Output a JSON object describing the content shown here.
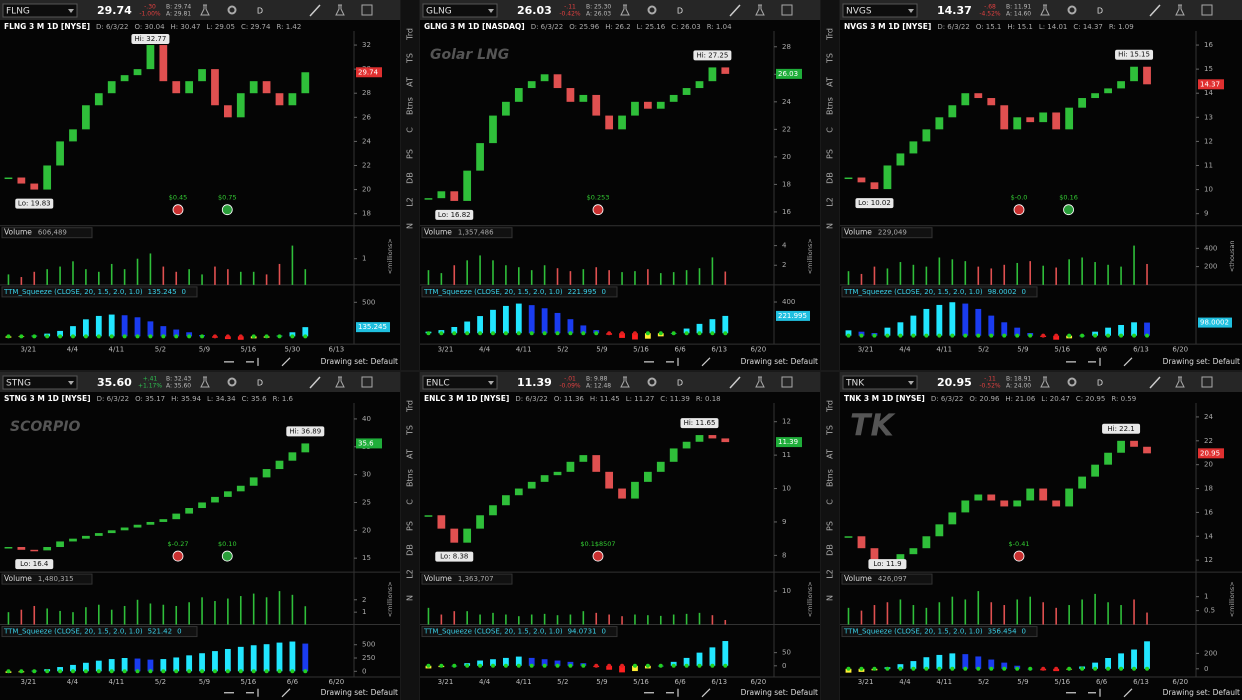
{
  "sidebar_tabs": [
    "Trd",
    "TS",
    "AT",
    "Btns",
    "C",
    "PS",
    "DB",
    "L2",
    "N"
  ],
  "panels": [
    {
      "symbol": "FLNG",
      "last": "29.74",
      "change": "-.30",
      "change_pct": "-1.00%",
      "bid": "B: 29.74",
      "ask": "A: 29.81",
      "timeframe": "D",
      "title": "FLNG 3 M 1D [NYSE]",
      "date": "D: 6/3/22",
      "open": "O: 30.04",
      "high": "H: 30.47",
      "low": "L: 29.05",
      "close": "C: 29.74",
      "range": "R: 1.42",
      "hi_label": "Hi: 32.77",
      "lo_label": "Lo: 19.83",
      "price_ticks": [
        18,
        20,
        22,
        24,
        26,
        28,
        30,
        32
      ],
      "price_tag": "29.74",
      "price_tag_color": "#e03030",
      "events": [
        "$0.45",
        "$0.75"
      ],
      "volume_label": "Volume",
      "volume_value": "606,489",
      "volume_ticks": [
        1
      ],
      "volume_unit": "<millions>",
      "study_label": "TTM_Squeeze (CLOSE, 20, 1.5, 2.0, 1.0)",
      "study_value": "135.245",
      "study_zero": "0",
      "study_ticks": [
        500
      ],
      "study_tag": "135.245",
      "dates": [
        "3/21",
        "4/4",
        "4/11",
        "5/2",
        "5/9",
        "5/16",
        "5/30",
        "6/13"
      ],
      "drawing_set": "Drawing set: Default",
      "closes": [
        21,
        20.5,
        20,
        22,
        24,
        25,
        27,
        28,
        29,
        29.5,
        30,
        32,
        29,
        28,
        29,
        30,
        27,
        26,
        28,
        29,
        28,
        27,
        28,
        29.74
      ],
      "volumes": [
        0.4,
        0.3,
        0.5,
        0.6,
        0.7,
        0.9,
        0.6,
        0.5,
        0.8,
        0.6,
        1.0,
        1.2,
        0.7,
        0.5,
        0.6,
        0.4,
        0.7,
        0.6,
        0.5,
        0.5,
        0.4,
        0.8,
        1.5,
        0.6
      ],
      "squeeze": [
        -20,
        -10,
        10,
        40,
        80,
        150,
        250,
        300,
        320,
        310,
        280,
        220,
        150,
        100,
        60,
        20,
        -20,
        -40,
        -50,
        -30,
        -20,
        10,
        60,
        135.245
      ]
    },
    {
      "symbol": "GLNG",
      "last": "26.03",
      "change": "-.11",
      "change_pct": "-0.42%",
      "bid": "B: 25.30",
      "ask": "A: 26.03",
      "timeframe": "D",
      "title": "GLNG 3 M 1D [NASDAQ]",
      "date": "D: 6/3/22",
      "open": "O: 25.96",
      "high": "H: 26.2",
      "low": "L: 25.16",
      "close": "C: 26.03",
      "range": "R: 1.04",
      "watermark": "Golar LNG",
      "hi_label": "Hi: 27.25",
      "lo_label": "Lo: 16.82",
      "price_ticks": [
        16,
        18,
        20,
        22,
        24,
        26,
        28
      ],
      "price_tag": "26.03",
      "price_tag_color": "#1fae3a",
      "events": [
        "$0.253"
      ],
      "volume_label": "Volume",
      "volume_value": "1,357,486",
      "volume_ticks": [
        2,
        4
      ],
      "volume_unit": "<millions>",
      "study_label": "TTM_Squeeze (CLOSE, 20, 1.5, 2.0, 1.0)",
      "study_value": "221.995",
      "study_zero": "0",
      "study_ticks": [
        400
      ],
      "study_tag": "221.995",
      "dates": [
        "3/21",
        "4/4",
        "4/11",
        "5/2",
        "5/9",
        "5/16",
        "6/6",
        "6/13",
        "6/20"
      ],
      "drawing_set": "Drawing set: Default",
      "closes": [
        17,
        17.5,
        16.8,
        19,
        21,
        23,
        24,
        25,
        25.5,
        26,
        25,
        24,
        24.5,
        23,
        22,
        23,
        24,
        23.5,
        24,
        24.5,
        25,
        25.5,
        26.5,
        26.03
      ],
      "volumes": [
        1.5,
        1.2,
        2,
        2.5,
        3,
        2.5,
        2,
        1.8,
        1.5,
        2,
        1.7,
        1.4,
        1.6,
        1.8,
        1.5,
        1.3,
        1.4,
        1.6,
        1.2,
        1.3,
        1.5,
        1.7,
        2.8,
        1.36
      ],
      "squeeze": [
        20,
        40,
        80,
        150,
        220,
        300,
        350,
        380,
        360,
        320,
        260,
        180,
        100,
        40,
        -20,
        -60,
        -80,
        -70,
        -40,
        0,
        60,
        120,
        180,
        221.995
      ]
    },
    {
      "symbol": "NVGS",
      "last": "14.37",
      "change": "-.68",
      "change_pct": "-4.52%",
      "bid": "B: 11.91",
      "ask": "A: 14.60",
      "timeframe": "D",
      "title": "NVGS 3 M 1D [NYSE]",
      "date": "D: 6/3/22",
      "open": "O: 15.1",
      "high": "H: 15.1",
      "low": "L: 14.01",
      "close": "C: 14.37",
      "range": "R: 1.09",
      "hi_label": "Hi: 15.15",
      "lo_label": "Lo: 10.02",
      "price_ticks": [
        9,
        10,
        11,
        12,
        13,
        14,
        15,
        16
      ],
      "price_tag": "14.37",
      "price_tag_color": "#e03030",
      "events": [
        "$-0.0",
        "$0.16"
      ],
      "volume_label": "Volume",
      "volume_value": "229,049",
      "volume_ticks": [
        200,
        400
      ],
      "volume_unit": "<thousan",
      "study_label": "TTM_Squeeze (CLOSE, 20, 1.5, 2.0, 1.0)",
      "study_value": "98.0002",
      "study_zero": "0",
      "study_ticks": [],
      "study_tag": "98.0002",
      "dates": [
        "3/21",
        "4/4",
        "4/11",
        "5/2",
        "5/9",
        "5/16",
        "6/6",
        "6/13",
        "6/20"
      ],
      "drawing_set": "Drawing set: Default",
      "closes": [
        10.5,
        10.3,
        10.02,
        11,
        11.5,
        12,
        12.5,
        13,
        13.5,
        14,
        13.8,
        13.5,
        12.5,
        13,
        12.8,
        13.2,
        12.5,
        13.4,
        13.8,
        14,
        14.2,
        14.5,
        15.1,
        14.37
      ],
      "volumes": [
        150,
        120,
        200,
        180,
        250,
        220,
        200,
        300,
        280,
        260,
        200,
        180,
        220,
        240,
        260,
        210,
        190,
        280,
        300,
        250,
        220,
        200,
        430,
        229
      ],
      "squeeze": [
        40,
        30,
        20,
        60,
        100,
        150,
        200,
        230,
        250,
        240,
        200,
        150,
        100,
        60,
        20,
        -10,
        -30,
        -20,
        0,
        30,
        60,
        80,
        100,
        98.0002
      ]
    },
    {
      "symbol": "STNG",
      "last": "35.60",
      "change": "+.41",
      "change_pct": "+1.17%",
      "bid": "B: 32.43",
      "ask": "A: 35.60",
      "timeframe": "D",
      "title": "STNG 3 M 1D [NYSE]",
      "date": "D: 6/3/22",
      "open": "O: 35.17",
      "high": "H: 35.94",
      "low": "L: 34.34",
      "close": "C: 35.6",
      "range": "R: 1.6",
      "watermark": "SCORPIO",
      "hi_label": "Hi: 36.89",
      "lo_label": "Lo: 16.4",
      "price_ticks": [
        15,
        20,
        25,
        30,
        35,
        40
      ],
      "price_tag": "35.6",
      "price_tag_color": "#1fae3a",
      "events": [
        "$-0.27",
        "$0.10"
      ],
      "volume_label": "Volume",
      "volume_value": "1,480,315",
      "volume_ticks": [
        1,
        2
      ],
      "volume_unit": "<millions>",
      "study_label": "TTM_Squeeze (CLOSE, 20, 1.5, 2.0, 1.0)",
      "study_value": "521.42",
      "study_zero": "0",
      "study_ticks": [
        0,
        250,
        500
      ],
      "dates": [
        "3/21",
        "4/4",
        "4/11",
        "5/2",
        "5/9",
        "5/16",
        "6/6",
        "6/20"
      ],
      "drawing_set": "Drawing set: Default",
      "closes": [
        17,
        16.5,
        16.4,
        17,
        18,
        18.5,
        19,
        19.5,
        20,
        20.5,
        21,
        21.5,
        22,
        23,
        24,
        25,
        26,
        27,
        28,
        29.5,
        31,
        32.5,
        34,
        35.6
      ],
      "volumes": [
        1,
        1.2,
        1.5,
        1.3,
        1.1,
        1,
        1.4,
        1.6,
        1.2,
        1.5,
        2,
        1.7,
        1.6,
        1.5,
        1.8,
        2.2,
        1.9,
        2.1,
        2.3,
        2.5,
        2.2,
        2.7,
        2.4,
        1.48
      ],
      "squeeze": [
        -30,
        -20,
        10,
        40,
        80,
        120,
        160,
        200,
        230,
        250,
        240,
        220,
        230,
        260,
        300,
        340,
        380,
        420,
        460,
        490,
        510,
        540,
        560,
        521.42
      ]
    },
    {
      "symbol": "ENLC",
      "last": "11.39",
      "change": "-.01",
      "change_pct": "-0.09%",
      "bid": "B: 9.88",
      "ask": "A: 12.48",
      "timeframe": "D",
      "title": "ENLC 3 M 1D [NYSE]",
      "date": "D: 6/3/22",
      "open": "O: 11.36",
      "high": "H: 11.45",
      "low": "L: 11.27",
      "close": "C: 11.39",
      "range": "R: 0.18",
      "hi_label": "Hi: 11.65",
      "lo_label": "Lo: 8.38",
      "price_ticks": [
        8,
        9,
        10,
        11,
        12
      ],
      "price_tag": "11.39",
      "price_tag_color": "#1fae3a",
      "events": [
        "$0.1$8507"
      ],
      "volume_label": "Volume",
      "volume_value": "1,363,707",
      "volume_ticks": [
        10
      ],
      "volume_unit": "<millions>",
      "study_label": "TTM_Squeeze (CLOSE, 20, 1.5, 2.0, 1.0)",
      "study_value": "94.0731",
      "study_zero": "0",
      "study_ticks": [
        0,
        50
      ],
      "dates": [
        "3/21",
        "4/4",
        "4/11",
        "5/2",
        "5/9",
        "5/16",
        "6/6",
        "6/13",
        "6/20"
      ],
      "drawing_set": "Drawing set: Default",
      "closes": [
        9.2,
        8.8,
        8.38,
        8.8,
        9.2,
        9.5,
        9.8,
        10,
        10.2,
        10.4,
        10.5,
        10.8,
        11,
        10.5,
        10,
        9.7,
        10.2,
        10.5,
        10.8,
        11.2,
        11.4,
        11.6,
        11.5,
        11.39
      ],
      "volumes": [
        5,
        3,
        4,
        4,
        3,
        3.5,
        3,
        2.5,
        3,
        3.2,
        2.8,
        3,
        4,
        3.5,
        3,
        2.5,
        3,
        2.8,
        2.6,
        3,
        3.2,
        3.5,
        2.8,
        1.36
      ],
      "squeeze": [
        -10,
        -5,
        0,
        10,
        20,
        25,
        30,
        35,
        30,
        25,
        20,
        15,
        10,
        -5,
        -15,
        -25,
        -20,
        -10,
        0,
        15,
        30,
        50,
        70,
        94.0731
      ]
    },
    {
      "symbol": "TNK",
      "last": "20.95",
      "change": "-.11",
      "change_pct": "-0.52%",
      "bid": "B: 18.91",
      "ask": "A: 24.00",
      "timeframe": "D",
      "title": "TNK 3 M 1D [NYSE]",
      "date": "D: 6/3/22",
      "open": "O: 20.96",
      "high": "H: 21.06",
      "low": "L: 20.47",
      "close": "C: 20.95",
      "range": "R: 0.59",
      "watermark": "TK",
      "hi_label": "Hi: 22.1",
      "lo_label": "Lo: 11.9",
      "price_ticks": [
        12,
        14,
        16,
        18,
        20,
        22,
        24
      ],
      "price_tag": "20.95",
      "price_tag_color": "#e03030",
      "events": [
        "$-0.41"
      ],
      "volume_label": "Volume",
      "volume_value": "426,097",
      "volume_ticks": [
        0.5,
        1
      ],
      "volume_unit": "<millions>",
      "study_label": "TTM_Squeeze (CLOSE, 20, 1.5, 2.0, 1.0)",
      "study_value": "356.454",
      "study_zero": "0",
      "study_ticks": [
        0,
        200
      ],
      "dates": [
        "3/21",
        "4/4",
        "4/11",
        "5/2",
        "5/9",
        "5/16",
        "6/6",
        "6/13",
        "6/20"
      ],
      "drawing_set": "Drawing set: Default",
      "closes": [
        14,
        13,
        12,
        11.9,
        12.5,
        13,
        14,
        15,
        16,
        17,
        17.5,
        17,
        16.5,
        17,
        18,
        17,
        16.5,
        18,
        19,
        20,
        21,
        22,
        21.5,
        20.95
      ],
      "volumes": [
        0.6,
        0.5,
        0.7,
        0.8,
        0.9,
        0.7,
        0.6,
        0.8,
        1,
        0.9,
        1.2,
        0.8,
        0.7,
        0.9,
        1,
        0.8,
        0.6,
        0.7,
        0.9,
        1.1,
        0.8,
        0.7,
        0.9,
        0.43
      ],
      "squeeze": [
        -50,
        -40,
        -20,
        20,
        60,
        100,
        150,
        180,
        200,
        190,
        160,
        120,
        80,
        40,
        0,
        -20,
        -30,
        -10,
        30,
        80,
        140,
        200,
        250,
        356.454
      ]
    }
  ]
}
